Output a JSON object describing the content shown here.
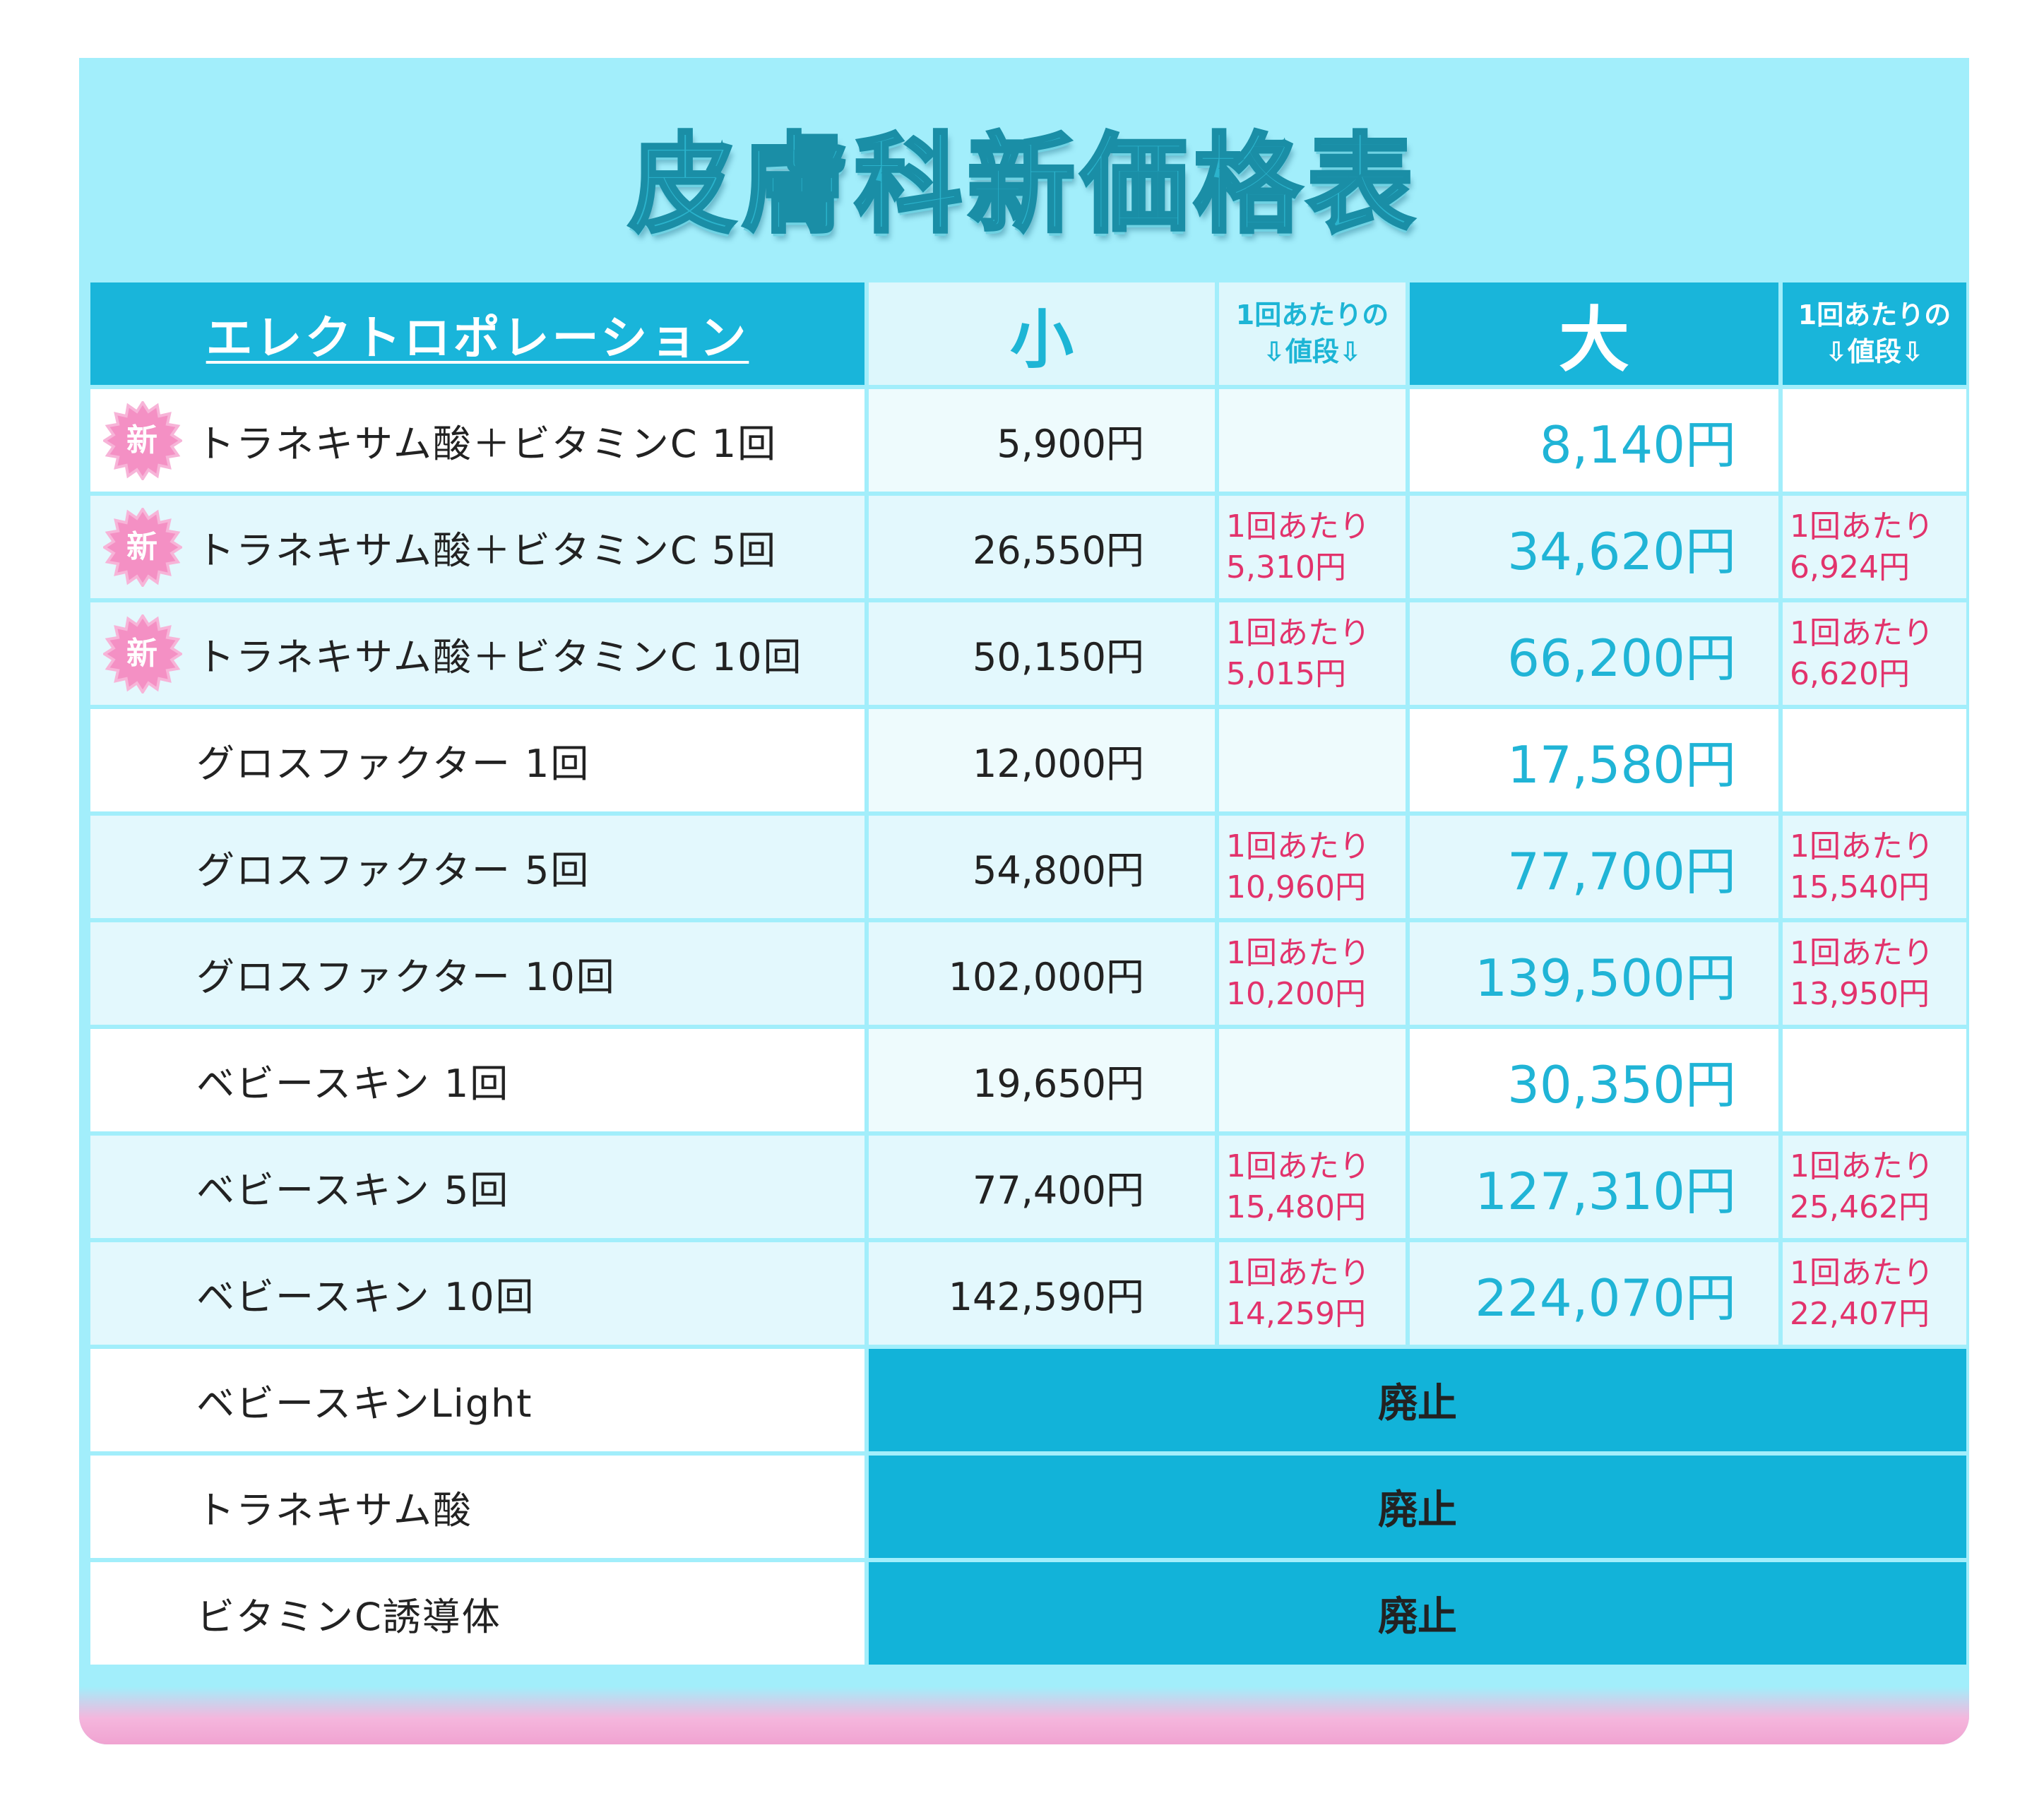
{
  "title": "皮膚科新価格表",
  "header": {
    "name": "エレクトロポレーション",
    "small": "小",
    "per_small_line1": "1回あたりの",
    "per_small_line2": "⇩値段⇩",
    "large": "大",
    "per_large_line1": "1回あたりの",
    "per_large_line2": "⇩値段⇩"
  },
  "badge_text": "新",
  "rows": [
    {
      "name": "トラネキサム酸＋ビタミンC 1回",
      "new": true,
      "small": "5,900円",
      "per_small_1": "",
      "per_small_2": "",
      "large": "8,140円",
      "per_large_1": "",
      "per_large_2": ""
    },
    {
      "name": "トラネキサム酸＋ビタミンC 5回",
      "new": true,
      "small": "26,550円",
      "per_small_1": "1回あたり",
      "per_small_2": "5,310円",
      "large": "34,620円",
      "per_large_1": "1回あたり",
      "per_large_2": "6,924円"
    },
    {
      "name": "トラネキサム酸＋ビタミンC 10回",
      "new": true,
      "small": "50,150円",
      "per_small_1": "1回あたり",
      "per_small_2": "5,015円",
      "large": "66,200円",
      "per_large_1": "1回あたり",
      "per_large_2": "6,620円"
    },
    {
      "name": "グロスファクター 1回",
      "new": false,
      "small": "12,000円",
      "per_small_1": "",
      "per_small_2": "",
      "large": "17,580円",
      "per_large_1": "",
      "per_large_2": ""
    },
    {
      "name": "グロスファクター 5回",
      "new": false,
      "small": "54,800円",
      "per_small_1": "1回あたり",
      "per_small_2": "10,960円",
      "large": "77,700円",
      "per_large_1": "1回あたり",
      "per_large_2": "15,540円"
    },
    {
      "name": "グロスファクター 10回",
      "new": false,
      "small": "102,000円",
      "per_small_1": "1回あたり",
      "per_small_2": "10,200円",
      "large": "139,500円",
      "per_large_1": "1回あたり",
      "per_large_2": "13,950円"
    },
    {
      "name": "ベビースキン 1回",
      "new": false,
      "small": "19,650円",
      "per_small_1": "",
      "per_small_2": "",
      "large": "30,350円",
      "per_large_1": "",
      "per_large_2": ""
    },
    {
      "name": "ベビースキン 5回",
      "new": false,
      "small": "77,400円",
      "per_small_1": "1回あたり",
      "per_small_2": "15,480円",
      "large": "127,310円",
      "per_large_1": "1回あたり",
      "per_large_2": "25,462円"
    },
    {
      "name": "ベビースキン 10回",
      "new": false,
      "small": "142,590円",
      "per_small_1": "1回あたり",
      "per_small_2": "14,259円",
      "large": "224,070円",
      "per_large_1": "1回あたり",
      "per_large_2": "22,407円"
    }
  ],
  "abolished_rows": [
    {
      "name": "ベビースキンLight",
      "status": "廃止"
    },
    {
      "name": "トラネキサム酸",
      "status": "廃止"
    },
    {
      "name": "ビタミンC誘導体",
      "status": "廃止"
    }
  ]
}
